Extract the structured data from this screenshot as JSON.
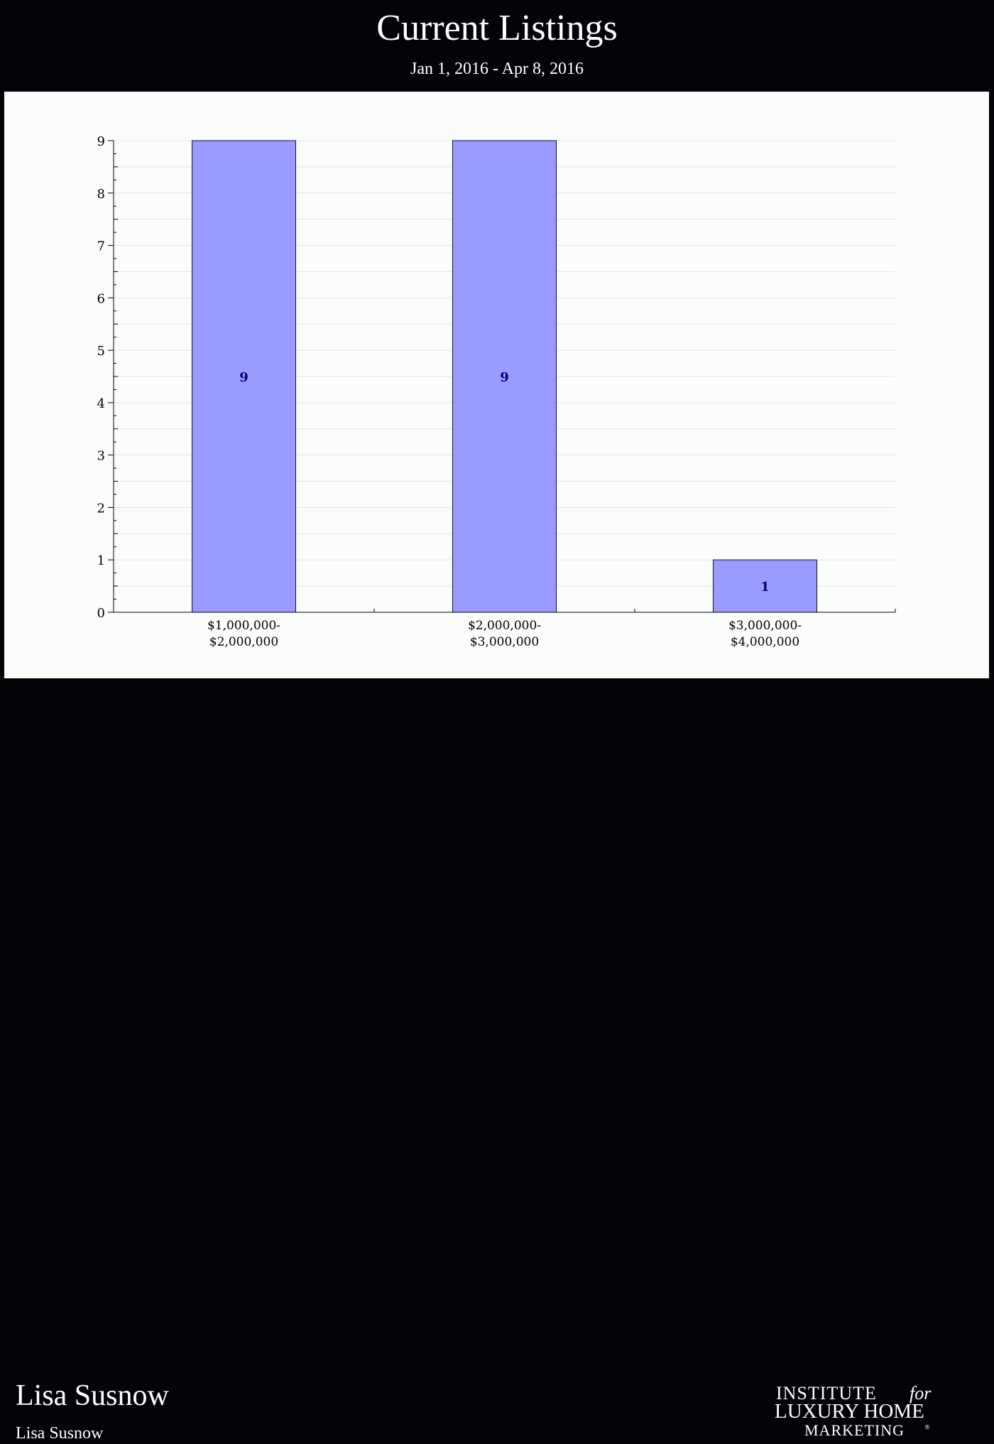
{
  "header": {
    "title": "Current Listings",
    "subtitle": "Jan 1, 2016 - Apr 8, 2016"
  },
  "chart_data": {
    "type": "bar",
    "categories": [
      [
        "$1,000,000-",
        "$2,000,000"
      ],
      [
        "$2,000,000-",
        "$3,000,000"
      ],
      [
        "$3,000,000-",
        "$4,000,000"
      ]
    ],
    "values": [
      9,
      9,
      1
    ],
    "data_labels": [
      "9",
      "9",
      "1"
    ],
    "yticks": [
      "0",
      "1",
      "2",
      "3",
      "4",
      "5",
      "6",
      "7",
      "8",
      "9"
    ],
    "ylim": [
      0,
      9
    ],
    "grid": true,
    "bar_color": "#9b9bff",
    "label_color": "#000080"
  },
  "footer": {
    "agent_name": "Lisa Susnow",
    "agent_sub": "Lisa Susnow",
    "logo_line1": "INSTITUTE",
    "logo_line1_italic": "for",
    "logo_line2": "LUXURY HOME",
    "logo_line3": "MARKETING",
    "logo_mark": "®"
  }
}
